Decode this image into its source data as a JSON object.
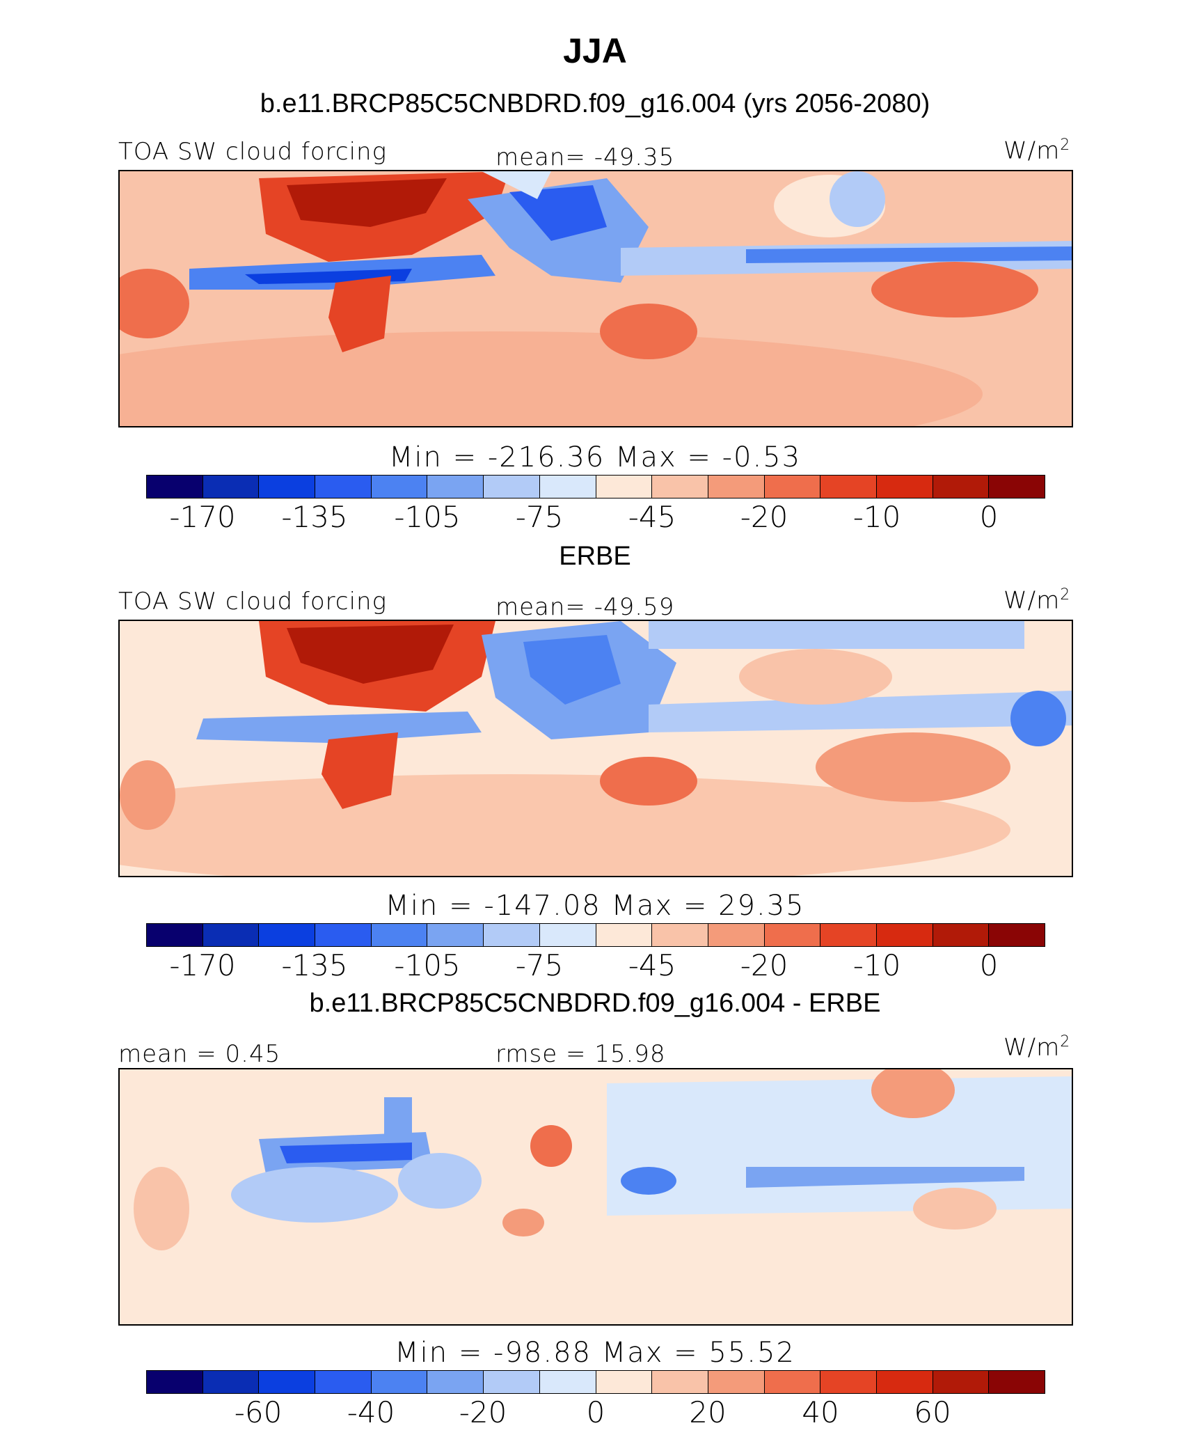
{
  "title": "JJA",
  "colors": [
    "#08006e",
    "#0a2db4",
    "#0b3fe0",
    "#2a5cf0",
    "#4c82f2",
    "#7aa4f2",
    "#b2cbf7",
    "#d9e8fb",
    "#fde8d8",
    "#f9c3a9",
    "#f49b7a",
    "#ef6e4c",
    "#e54425",
    "#d72a10",
    "#b11a08",
    "#8a0505"
  ],
  "panels": [
    {
      "id": "model",
      "subtitle": "b.e11.BRCP85C5CNBDRD.f09_g16.004 (yrs 2056-2080)",
      "left_label": "TOA SW cloud forcing",
      "center_label": "mean=  -49.35",
      "units": "W/m",
      "units_sup": "2",
      "minmax": "Min  =  -216.36  Max  =   -0.53",
      "colorbar_ticks": [
        "-170",
        "-135",
        "-105",
        "-75",
        "-45",
        "-20",
        "-10",
        "0"
      ]
    },
    {
      "id": "obs",
      "subtitle": "ERBE",
      "left_label": "TOA SW cloud forcing",
      "center_label": "mean=  -49.59",
      "units": "W/m",
      "units_sup": "2",
      "minmax": "Min  =  -147.08  Max  =   29.35",
      "colorbar_ticks": [
        "-170",
        "-135",
        "-105",
        "-75",
        "-45",
        "-20",
        "-10",
        "0"
      ]
    },
    {
      "id": "diff",
      "subtitle": "b.e11.BRCP85C5CNBDRD.f09_g16.004 - ERBE",
      "left_label": "mean =    0.45",
      "center_label": "rmse =   15.98",
      "units": "W/m",
      "units_sup": "2",
      "minmax": "Min  =  -98.88  Max  =   55.52",
      "colorbar_ticks": [
        "-60",
        "-40",
        "-20",
        "0",
        "20",
        "40",
        "60"
      ]
    }
  ]
}
